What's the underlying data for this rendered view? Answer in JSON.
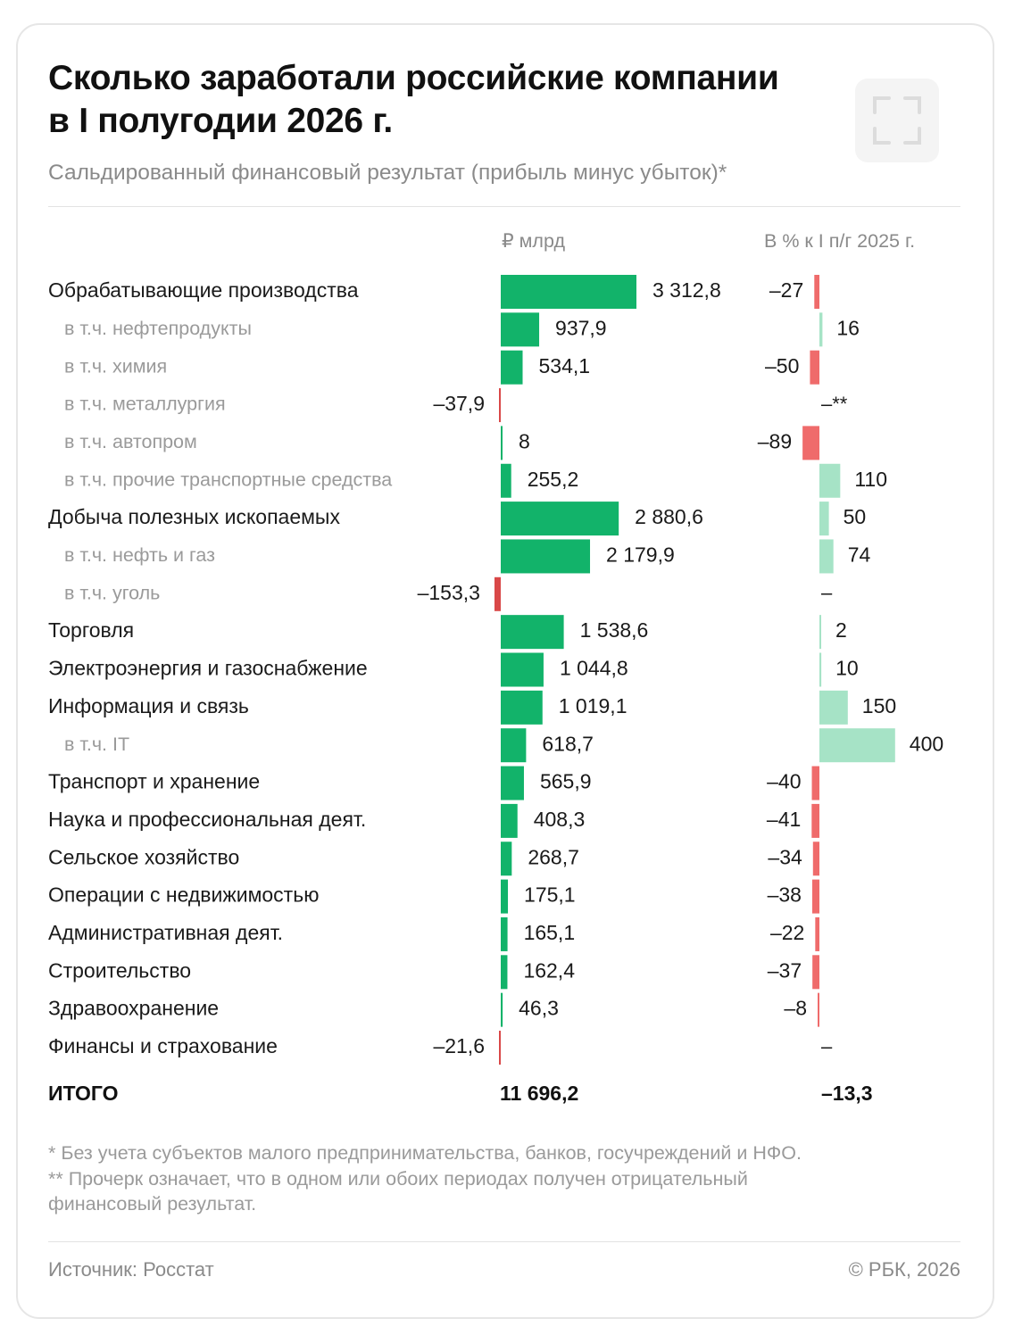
{
  "title_line1": "Сколько заработали российские компании",
  "title_line2": "в I полугодии 2026 г.",
  "subtitle": "Сальдированный финансовый результат (прибыль минус убыток)*",
  "colors": {
    "positive_value": "#12b36a",
    "positive_change": "#a6e3c6",
    "negative": "#ef6b6b",
    "negative_value_dark": "#d94848"
  },
  "chart_data": {
    "type": "bar",
    "title": "Сколько заработали российские компании в I полугодии 2026 г.",
    "subtitle": "Сальдированный финансовый результат (прибыль минус убыток)*",
    "value_header": "₽ млрд",
    "change_header": "В % к I п/г 2025 г.",
    "rows": [
      {
        "label": "Обрабатывающие производства",
        "sub": false,
        "value": 3312.8,
        "value_label": "3 312,8",
        "change": -27,
        "change_label": "–27"
      },
      {
        "label": "в т.ч. нефтепродукты",
        "sub": true,
        "value": 937.9,
        "value_label": "937,9",
        "change": 16,
        "change_label": "16"
      },
      {
        "label": "в т.ч. химия",
        "sub": true,
        "value": 534.1,
        "value_label": "534,1",
        "change": -50,
        "change_label": "–50"
      },
      {
        "label": "в т.ч. металлургия",
        "sub": true,
        "value": -37.9,
        "value_label": "–37,9",
        "change": null,
        "change_label": "–**"
      },
      {
        "label": "в т.ч. автопром",
        "sub": true,
        "value": 8,
        "value_label": "8",
        "change": -89,
        "change_label": "–89"
      },
      {
        "label": "в т.ч. прочие транспортные средства",
        "sub": true,
        "value": 255.2,
        "value_label": "255,2",
        "change": 110,
        "change_label": "110"
      },
      {
        "label": "Добыча полезных ископаемых",
        "sub": false,
        "value": 2880.6,
        "value_label": "2 880,6",
        "change": 50,
        "change_label": "50"
      },
      {
        "label": "в т.ч. нефть и газ",
        "sub": true,
        "value": 2179.9,
        "value_label": "2 179,9",
        "change": 74,
        "change_label": "74"
      },
      {
        "label": "в т.ч. уголь",
        "sub": true,
        "value": -153.3,
        "value_label": "–153,3",
        "change": null,
        "change_label": "–"
      },
      {
        "label": "Торговля",
        "sub": false,
        "value": 1538.6,
        "value_label": "1 538,6",
        "change": 2,
        "change_label": "2"
      },
      {
        "label": "Электроэнергия и газоснабжение",
        "sub": false,
        "value": 1044.8,
        "value_label": "1 044,8",
        "change": 10,
        "change_label": "10"
      },
      {
        "label": "Информация и связь",
        "sub": false,
        "value": 1019.1,
        "value_label": "1 019,1",
        "change": 150,
        "change_label": "150"
      },
      {
        "label": "в т.ч. IT",
        "sub": true,
        "value": 618.7,
        "value_label": "618,7",
        "change": 400,
        "change_label": "400"
      },
      {
        "label": "Транспорт и хранение",
        "sub": false,
        "value": 565.9,
        "value_label": "565,9",
        "change": -40,
        "change_label": "–40"
      },
      {
        "label": "Наука и профессиональная деят.",
        "sub": false,
        "value": 408.3,
        "value_label": "408,3",
        "change": -41,
        "change_label": "–41"
      },
      {
        "label": "Сельское хозяйство",
        "sub": false,
        "value": 268.7,
        "value_label": "268,7",
        "change": -34,
        "change_label": "–34"
      },
      {
        "label": "Операции с недвижимостью",
        "sub": false,
        "value": 175.1,
        "value_label": "175,1",
        "change": -38,
        "change_label": "–38"
      },
      {
        "label": "Административная деят.",
        "sub": false,
        "value": 165.1,
        "value_label": "165,1",
        "change": -22,
        "change_label": "–22"
      },
      {
        "label": "Строительство",
        "sub": false,
        "value": 162.4,
        "value_label": "162,4",
        "change": -37,
        "change_label": "–37"
      },
      {
        "label": "Здравоохранение",
        "sub": false,
        "value": 46.3,
        "value_label": "46,3",
        "change": -8,
        "change_label": "–8"
      },
      {
        "label": "Финансы и страхование",
        "sub": false,
        "value": -21.6,
        "value_label": "–21,6",
        "change": null,
        "change_label": "–"
      }
    ],
    "total": {
      "label": "ИТОГО",
      "value": 11696.2,
      "value_label": "11 696,2",
      "change": -13.3,
      "change_label": "–13,3"
    }
  },
  "footnote1": "* Без учета субъектов малого предпринимательства, банков, госучреждений и НФО.",
  "footnote2": "** Прочерк означает, что в одном или обоих периодах получен отрицательный",
  "footnote3": "финансовый результат.",
  "source": "Источник: Росстат",
  "copyright": "© РБК, 2026"
}
